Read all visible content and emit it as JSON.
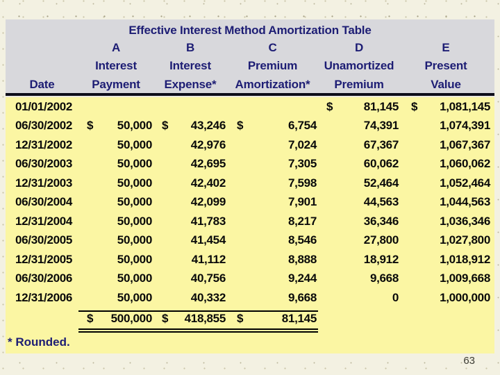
{
  "slide": {
    "page_number": "63"
  },
  "table": {
    "title": "Effective Interest Method Amortization Table",
    "header": {
      "letters": [
        "A",
        "B",
        "C",
        "D",
        "E"
      ],
      "line2": [
        "Interest",
        "Interest",
        "Premium",
        "Unamortized",
        "Present"
      ],
      "date_label": "Date",
      "line3": [
        "Payment",
        "Expense*",
        "Amortization*",
        "Premium",
        "Value"
      ]
    },
    "rows": [
      {
        "date": "01/01/2002",
        "a_sign": "",
        "a": "",
        "b_sign": "",
        "b": "",
        "c_sign": "",
        "c": "",
        "d_sign": "$",
        "d": "81,145",
        "e_sign": "$",
        "e": "1,081,145"
      },
      {
        "date": "06/30/2002",
        "a_sign": "$",
        "a": "50,000",
        "b_sign": "$",
        "b": "43,246",
        "c_sign": "$",
        "c": "6,754",
        "d_sign": "",
        "d": "74,391",
        "e_sign": "",
        "e": "1,074,391"
      },
      {
        "date": "12/31/2002",
        "a_sign": "",
        "a": "50,000",
        "b_sign": "",
        "b": "42,976",
        "c_sign": "",
        "c": "7,024",
        "d_sign": "",
        "d": "67,367",
        "e_sign": "",
        "e": "1,067,367"
      },
      {
        "date": "06/30/2003",
        "a_sign": "",
        "a": "50,000",
        "b_sign": "",
        "b": "42,695",
        "c_sign": "",
        "c": "7,305",
        "d_sign": "",
        "d": "60,062",
        "e_sign": "",
        "e": "1,060,062"
      },
      {
        "date": "12/31/2003",
        "a_sign": "",
        "a": "50,000",
        "b_sign": "",
        "b": "42,402",
        "c_sign": "",
        "c": "7,598",
        "d_sign": "",
        "d": "52,464",
        "e_sign": "",
        "e": "1,052,464"
      },
      {
        "date": "06/30/2004",
        "a_sign": "",
        "a": "50,000",
        "b_sign": "",
        "b": "42,099",
        "c_sign": "",
        "c": "7,901",
        "d_sign": "",
        "d": "44,563",
        "e_sign": "",
        "e": "1,044,563"
      },
      {
        "date": "12/31/2004",
        "a_sign": "",
        "a": "50,000",
        "b_sign": "",
        "b": "41,783",
        "c_sign": "",
        "c": "8,217",
        "d_sign": "",
        "d": "36,346",
        "e_sign": "",
        "e": "1,036,346"
      },
      {
        "date": "06/30/2005",
        "a_sign": "",
        "a": "50,000",
        "b_sign": "",
        "b": "41,454",
        "c_sign": "",
        "c": "8,546",
        "d_sign": "",
        "d": "27,800",
        "e_sign": "",
        "e": "1,027,800"
      },
      {
        "date": "12/31/2005",
        "a_sign": "",
        "a": "50,000",
        "b_sign": "",
        "b": "41,112",
        "c_sign": "",
        "c": "8,888",
        "d_sign": "",
        "d": "18,912",
        "e_sign": "",
        "e": "1,018,912"
      },
      {
        "date": "06/30/2006",
        "a_sign": "",
        "a": "50,000",
        "b_sign": "",
        "b": "40,756",
        "c_sign": "",
        "c": "9,244",
        "d_sign": "",
        "d": "9,668",
        "e_sign": "",
        "e": "1,009,668"
      },
      {
        "date": "12/31/2006",
        "a_sign": "",
        "a": "50,000",
        "b_sign": "",
        "b": "40,332",
        "c_sign": "",
        "c": "9,668",
        "d_sign": "",
        "d": "0",
        "e_sign": "",
        "e": "1,000,000"
      }
    ],
    "totals": {
      "a_sign": "$",
      "a": "500,000",
      "b_sign": "$",
      "b": "418,855",
      "c_sign": "$",
      "c": "81,145"
    },
    "footnote": "* Rounded."
  }
}
